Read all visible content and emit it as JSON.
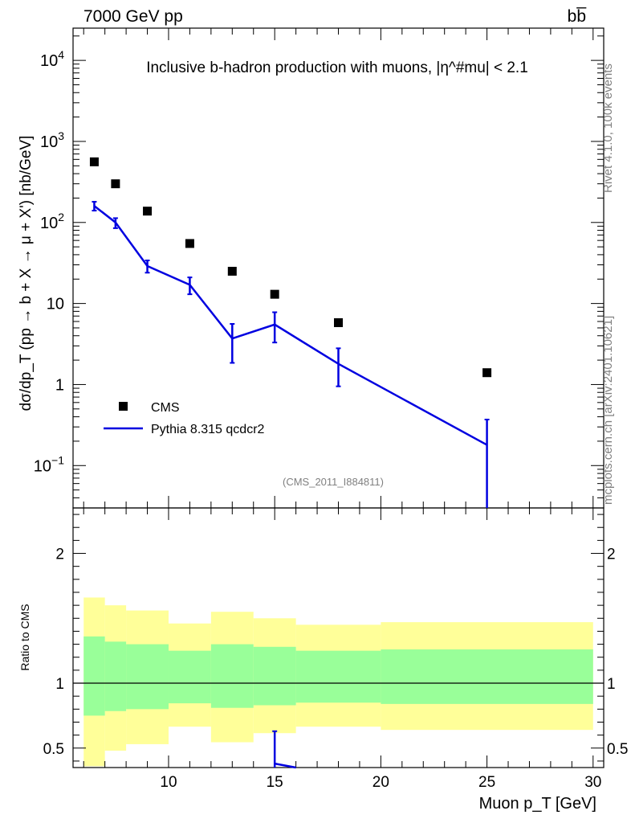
{
  "header": {
    "left": "7000 GeV pp",
    "right": "bb̅"
  },
  "side_labels": {
    "rivet": "Rivet 4.1.0,  100k events",
    "mcplots": "mcplots.cern.ch [arXiv:2401.10621]"
  },
  "chart_data": {
    "type": "scatter",
    "title": "Inclusive b-hadron production with muons, |η^#mu| < 2.1",
    "analysis_tag": "(CMS_2011_I884811)",
    "xlabel": "Muon p_T [GeV]",
    "ylabel": "dσ/dp_T (pp → b + X → μ + X') [nb/GeV]",
    "xlim": [
      5.5,
      30.5
    ],
    "ylim": [
      0.03,
      25000
    ],
    "yscale": "log",
    "xticks": [
      10,
      15,
      20,
      25,
      30
    ],
    "yticks": [
      {
        "value": 0.1,
        "mant": "10",
        "exp": "−1"
      },
      {
        "value": 1,
        "mant": "1",
        "exp": ""
      },
      {
        "value": 10,
        "mant": "10",
        "exp": ""
      },
      {
        "value": 100,
        "mant": "10",
        "exp": "2"
      },
      {
        "value": 1000,
        "mant": "10",
        "exp": "3"
      },
      {
        "value": 10000,
        "mant": "10",
        "exp": "4"
      }
    ],
    "legend": [
      {
        "name": "CMS",
        "marker": "square"
      },
      {
        "name": "Pythia 8.315 qcdcr2",
        "marker": "line"
      }
    ],
    "bins": [
      [
        6,
        7
      ],
      [
        7,
        8
      ],
      [
        8,
        10
      ],
      [
        10,
        12
      ],
      [
        12,
        14
      ],
      [
        14,
        16
      ],
      [
        16,
        20
      ],
      [
        20,
        30
      ]
    ],
    "series": [
      {
        "name": "CMS",
        "color": "#000000",
        "x": [
          6.5,
          7.5,
          9,
          11,
          13,
          15,
          18,
          25
        ],
        "y": [
          560,
          300,
          138,
          55,
          25,
          13,
          5.8,
          1.4
        ]
      },
      {
        "name": "Pythia 8.315 qcdcr2",
        "color": "#0000e0",
        "x": [
          6.5,
          7.5,
          9,
          11,
          13,
          15,
          18,
          25
        ],
        "y": [
          160,
          100,
          29,
          17,
          3.7,
          5.5,
          1.8,
          0.18
        ],
        "y_low": [
          140,
          85,
          24,
          13,
          1.85,
          3.3,
          0.95,
          0.01
        ],
        "y_high": [
          180,
          113,
          34,
          21,
          5.6,
          7.8,
          2.8,
          0.37
        ]
      }
    ],
    "ratio": {
      "ylabel": "Ratio to CMS",
      "ylim": [
        0.35,
        2.35
      ],
      "yticks": [
        {
          "value": 0.5,
          "label": "0.5"
        },
        {
          "value": 1,
          "label": "1"
        },
        {
          "value": 2,
          "label": "2"
        }
      ],
      "band_outer_low": [
        0.36,
        0.48,
        0.53,
        0.665,
        0.545,
        0.615,
        0.665,
        0.64
      ],
      "band_outer_high": [
        1.66,
        1.6,
        1.56,
        1.46,
        1.55,
        1.5,
        1.45,
        1.47
      ],
      "band_inner_low": [
        0.75,
        0.785,
        0.8,
        0.845,
        0.81,
        0.83,
        0.85,
        0.84
      ],
      "band_inner_high": [
        1.36,
        1.32,
        1.3,
        1.25,
        1.3,
        1.28,
        1.25,
        1.26
      ],
      "mc_x": [
        15,
        16
      ],
      "mc_y": [
        0.38,
        0.3
      ],
      "mc_err_x": 15,
      "mc_err_top": 0.63
    },
    "colors": {
      "mc": "#0000e0",
      "band_outer": "#ffff99",
      "band_inner": "#99ff99",
      "grey_text": "#808080"
    }
  }
}
